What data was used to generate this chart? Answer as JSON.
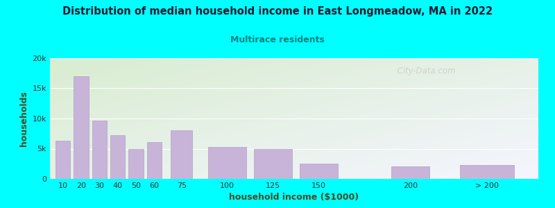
{
  "title": "Distribution of median household income in East Longmeadow, MA in 2022",
  "subtitle": "Multirace residents",
  "xlabel": "household income ($1000)",
  "ylabel": "households",
  "background_color": "#00FFFF",
  "plot_bg_top_left": "#d8edd0",
  "plot_bg_bottom_right": "#f5f5ff",
  "bar_color": "#c8b4d8",
  "bar_edge_color": "#b0a0c8",
  "title_color": "#1a1a2e",
  "subtitle_color": "#008080",
  "axis_label_color": "#4a4a20",
  "tick_label_color": "#333333",
  "watermark": "  City-Data.com",
  "values": [
    6300,
    17000,
    9600,
    7200,
    5000,
    6100,
    8100,
    5300,
    5000,
    2500,
    2100,
    2300
  ],
  "bar_positions": [
    10,
    20,
    30,
    40,
    50,
    60,
    75,
    100,
    125,
    150,
    200,
    242
  ],
  "bar_widths": [
    9,
    9,
    9,
    9,
    9,
    9,
    13,
    23,
    23,
    23,
    23,
    33
  ],
  "xlim": [
    3,
    270
  ],
  "ylim": [
    0,
    20000
  ],
  "yticks": [
    0,
    5000,
    10000,
    15000,
    20000
  ],
  "ytick_labels": [
    "0",
    "5k",
    "10k",
    "15k",
    "20k"
  ],
  "xtick_positions": [
    10,
    20,
    30,
    40,
    50,
    60,
    75,
    100,
    125,
    150,
    200,
    242
  ],
  "xtick_labels": [
    "10",
    "20",
    "30",
    "40",
    "50",
    "60",
    "75",
    "100",
    "125",
    "150",
    "200",
    "> 200"
  ]
}
